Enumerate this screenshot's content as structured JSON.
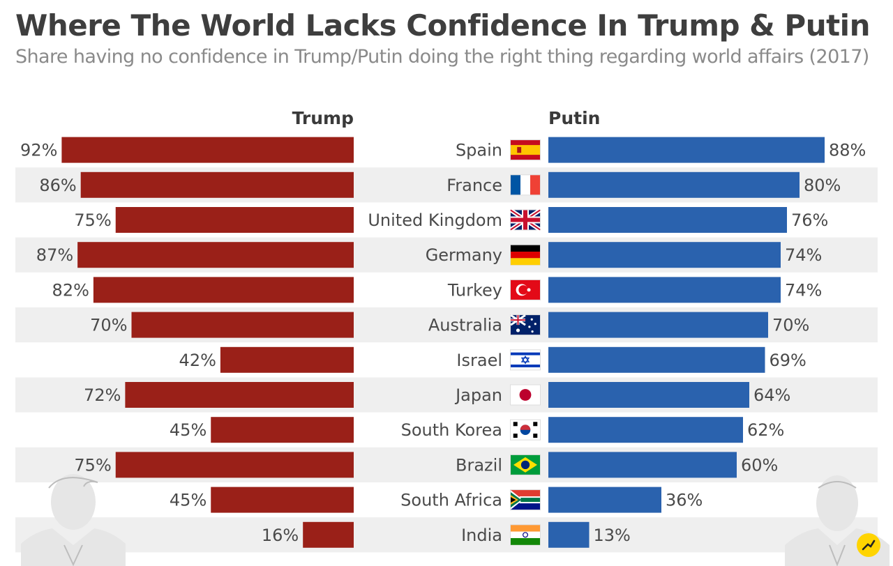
{
  "title": "Where The World Lacks Confidence In Trump & Putin",
  "subtitle": "Share having no confidence in Trump/Putin doing the right thing regarding world affairs (2017)",
  "chart_data": {
    "type": "bar",
    "orientation": "horizontal-diverging",
    "categories": [
      "Spain",
      "France",
      "United Kingdom",
      "Germany",
      "Turkey",
      "Australia",
      "Israel",
      "Japan",
      "South Korea",
      "Brazil",
      "South Africa",
      "India"
    ],
    "series": [
      {
        "name": "Trump",
        "values": [
          92,
          86,
          75,
          87,
          82,
          70,
          42,
          72,
          45,
          75,
          45,
          16
        ],
        "color": "#9a2018"
      },
      {
        "name": "Putin",
        "values": [
          88,
          80,
          76,
          74,
          74,
          70,
          69,
          64,
          62,
          60,
          36,
          13
        ],
        "color": "#2a62ae"
      }
    ],
    "unit": "%",
    "xlim": [
      0,
      100
    ],
    "grid": false,
    "row_stripes": true
  },
  "icons": [
    "flag-spain-icon",
    "flag-france-icon",
    "flag-uk-icon",
    "flag-germany-icon",
    "flag-turkey-icon",
    "flag-australia-icon",
    "flag-israel-icon",
    "flag-japan-icon",
    "flag-south-korea-icon",
    "flag-brazil-icon",
    "flag-south-africa-icon",
    "flag-india-icon",
    "trump-portrait-icon",
    "putin-portrait-icon",
    "statista-logo-icon"
  ]
}
